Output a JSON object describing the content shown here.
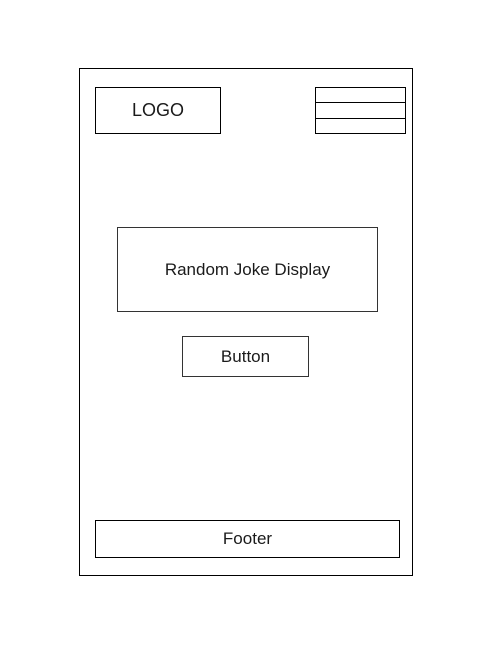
{
  "header": {
    "logo_label": "LOGO",
    "menu_icon": "hamburger-menu-icon"
  },
  "main": {
    "joke_display_label": "Random Joke Display",
    "button_label": "Button"
  },
  "footer": {
    "label": "Footer"
  },
  "colors": {
    "stroke": "#000000",
    "background": "#ffffff",
    "text": "#1a1a1a"
  }
}
